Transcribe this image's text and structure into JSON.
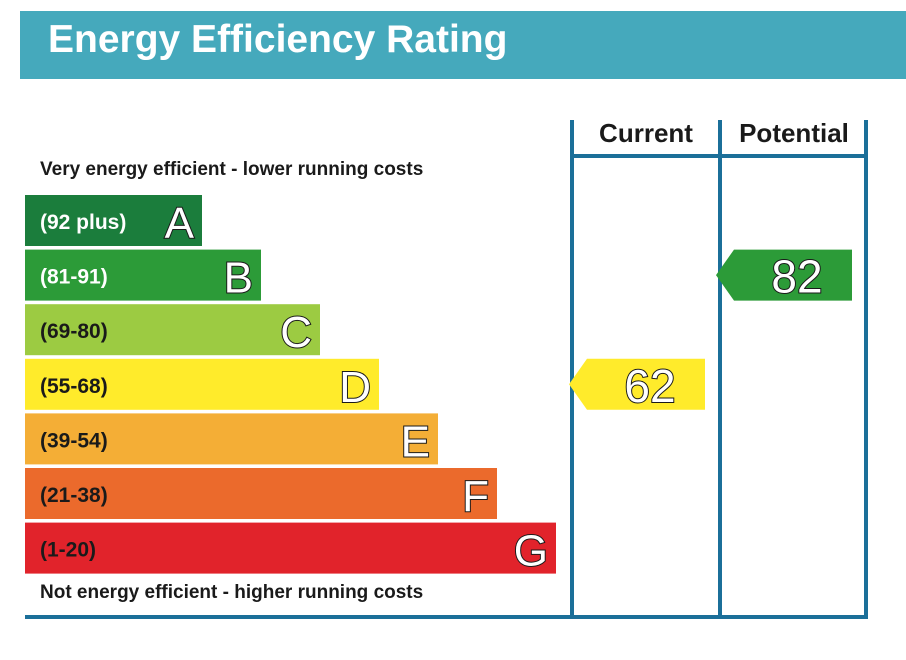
{
  "title": "Energy Efficiency Rating",
  "colors": {
    "title_bar": "#45a9bc",
    "frame": "#1b6f99",
    "band_A": "#1b7d3c",
    "band_B": "#2c9b38",
    "band_C": "#9ccb42",
    "band_D": "#ffeb2b",
    "band_E": "#f4ae36",
    "band_F": "#eb6a2c",
    "band_G": "#e1232b"
  },
  "chart_data": {
    "type": "bar",
    "title": "Energy Efficiency Rating",
    "top_caption": "Very energy efficient - lower running costs",
    "bottom_caption": "Not energy efficient - higher running costs",
    "columns": [
      "Current",
      "Potential"
    ],
    "bands": [
      {
        "letter": "A",
        "range": "(92 plus)",
        "min": 92,
        "max": 100,
        "color": "#1b7d3c",
        "text_color": "#ffffff"
      },
      {
        "letter": "B",
        "range": "(81-91)",
        "min": 81,
        "max": 91,
        "color": "#2c9b38",
        "text_color": "#ffffff"
      },
      {
        "letter": "C",
        "range": "(69-80)",
        "min": 69,
        "max": 80,
        "color": "#9ccb42",
        "text_color": "#1a1a1a"
      },
      {
        "letter": "D",
        "range": "(55-68)",
        "min": 55,
        "max": 68,
        "color": "#ffeb2b",
        "text_color": "#1a1a1a"
      },
      {
        "letter": "E",
        "range": "(39-54)",
        "min": 39,
        "max": 54,
        "color": "#f4ae36",
        "text_color": "#1a1a1a"
      },
      {
        "letter": "F",
        "range": "(21-38)",
        "min": 21,
        "max": 38,
        "color": "#eb6a2c",
        "text_color": "#1a1a1a"
      },
      {
        "letter": "G",
        "range": "(1-20)",
        "min": 1,
        "max": 20,
        "color": "#e1232b",
        "text_color": "#1a1a1a"
      }
    ],
    "ratings": [
      {
        "column": "Current",
        "value": 62,
        "band": "D",
        "color": "#ffeb2b"
      },
      {
        "column": "Potential",
        "value": 82,
        "band": "B",
        "color": "#2c9b38"
      }
    ]
  }
}
